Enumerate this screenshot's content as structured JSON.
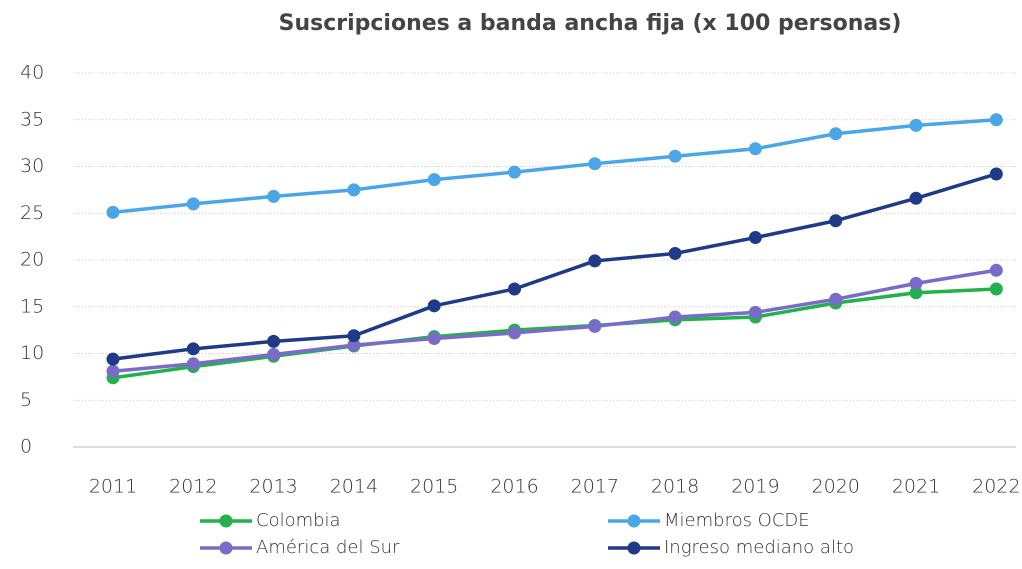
{
  "chart_data": {
    "type": "line",
    "title": "Suscripciones a banda ancha fija (x 100 personas)",
    "categories": [
      "2011",
      "2012",
      "2013",
      "2014",
      "2015",
      "2016",
      "2017",
      "2018",
      "2019",
      "2020",
      "2021",
      "2022"
    ],
    "series": [
      {
        "name": "Colombia",
        "color": "#22b14c",
        "values": [
          7.4,
          8.6,
          9.7,
          10.8,
          11.8,
          12.5,
          13.0,
          13.6,
          13.9,
          15.4,
          16.5,
          16.9
        ]
      },
      {
        "name": "Miembros OCDE",
        "color": "#4ba6e8",
        "values": [
          25.1,
          26.0,
          26.8,
          27.5,
          28.6,
          29.4,
          30.3,
          31.1,
          31.9,
          33.5,
          34.4,
          35.0
        ]
      },
      {
        "name": "América del Sur",
        "color": "#7b6bc9",
        "values": [
          8.1,
          8.9,
          9.9,
          10.9,
          11.6,
          12.2,
          12.9,
          13.9,
          14.4,
          15.8,
          17.5,
          18.9
        ]
      },
      {
        "name": "Ingreso mediano alto",
        "color": "#1f3a87",
        "values": [
          9.4,
          10.5,
          11.3,
          11.9,
          15.1,
          16.9,
          19.9,
          20.7,
          22.4,
          24.2,
          26.6,
          29.2
        ]
      }
    ],
    "ylim": [
      0,
      40
    ],
    "yticks": [
      0,
      5,
      10,
      15,
      20,
      25,
      30,
      35,
      40
    ],
    "grid": true,
    "legend": "bottom"
  }
}
